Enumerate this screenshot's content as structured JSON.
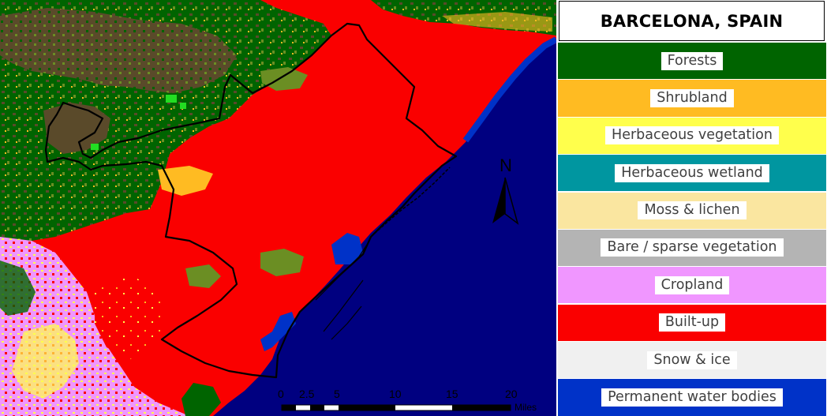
{
  "map": {
    "title": "BARCELONA, SPAIN",
    "north_label": "N",
    "north_arrow_icon": "north-arrow-icon",
    "scale_bar": {
      "labels": [
        "0",
        "2.5",
        "5",
        "10",
        "15",
        "20"
      ],
      "unit": "Miles"
    },
    "colors": {
      "sea": "#000080",
      "built_up": "#fa0000",
      "forest": "#006400",
      "shrubland": "#ffbb22",
      "herbaceous": "#ffff4c",
      "bare_brown": "#5a4a2a",
      "cropland": "#f096ff",
      "water": "#0032c8",
      "boundary": "#000000"
    }
  },
  "legend": {
    "items": [
      {
        "label": "Forests",
        "color": "#006400"
      },
      {
        "label": "Shrubland",
        "color": "#ffbb22"
      },
      {
        "label": "Herbaceous vegetation",
        "color": "#ffff4c"
      },
      {
        "label": "Herbaceous wetland",
        "color": "#0096a0"
      },
      {
        "label": "Moss & lichen",
        "color": "#fae6a0"
      },
      {
        "label": "Bare / sparse vegetation",
        "color": "#b4b4b4"
      },
      {
        "label": "Cropland",
        "color": "#f096ff"
      },
      {
        "label": "Built-up",
        "color": "#fa0000"
      },
      {
        "label": "Snow & ice",
        "color": "#f0f0f0"
      },
      {
        "label": "Permanent water bodies",
        "color": "#0032c8"
      }
    ]
  }
}
